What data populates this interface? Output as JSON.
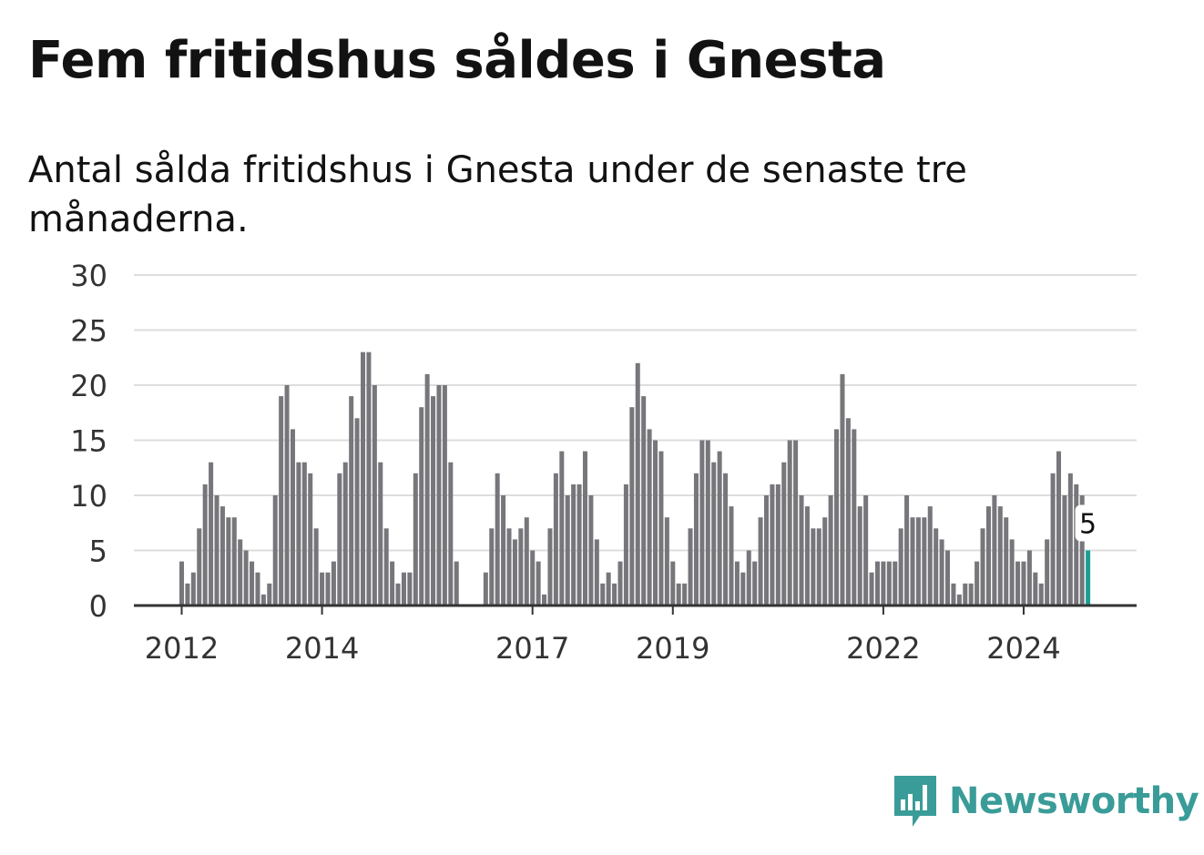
{
  "title": "Fem fritidshus såldes i Gnesta",
  "subtitle": "Antal sålda fritidshus i Gnesta under de senaste tre månaderna.",
  "brand": {
    "name": "Newsworthy",
    "color": "#3a9c98"
  },
  "colors": {
    "bar": "#77767b",
    "highlight": "#1a9e94",
    "grid": "#dddddd",
    "axis": "#333333"
  },
  "chart_data": {
    "type": "bar",
    "ylim": [
      0,
      30
    ],
    "yticks": [
      0,
      5,
      10,
      15,
      20,
      25,
      30
    ],
    "xticks": [
      {
        "label": "2012",
        "x": 2012.0
      },
      {
        "label": "2014",
        "x": 2014.0
      },
      {
        "label": "2017",
        "x": 2017.0
      },
      {
        "label": "2019",
        "x": 2019.0
      },
      {
        "label": "2022",
        "x": 2022.0
      },
      {
        "label": "2024",
        "x": 2024.0
      }
    ],
    "start": 2012.0,
    "step_months": 1,
    "grid": true,
    "values": [
      4,
      2,
      3,
      7,
      11,
      13,
      10,
      9,
      8,
      8,
      6,
      5,
      4,
      3,
      1,
      2,
      10,
      19,
      20,
      16,
      13,
      13,
      12,
      7,
      3,
      3,
      4,
      12,
      13,
      19,
      17,
      23,
      23,
      20,
      13,
      7,
      4,
      2,
      3,
      3,
      12,
      18,
      21,
      19,
      20,
      20,
      13,
      4,
      0,
      0,
      0,
      0,
      3,
      7,
      12,
      10,
      7,
      6,
      7,
      8,
      5,
      4,
      1,
      7,
      12,
      14,
      10,
      11,
      11,
      14,
      10,
      6,
      2,
      3,
      2,
      4,
      11,
      18,
      22,
      19,
      16,
      15,
      14,
      8,
      4,
      2,
      2,
      7,
      12,
      15,
      15,
      13,
      14,
      12,
      9,
      4,
      3,
      5,
      4,
      8,
      10,
      11,
      11,
      13,
      15,
      15,
      10,
      9,
      7,
      7,
      8,
      10,
      16,
      21,
      17,
      16,
      9,
      10,
      3,
      4,
      4,
      4,
      4,
      7,
      10,
      8,
      8,
      8,
      9,
      7,
      6,
      5,
      2,
      1,
      2,
      2,
      4,
      7,
      9,
      10,
      9,
      8,
      6,
      4,
      4,
      5,
      3,
      2,
      6,
      12,
      14,
      10,
      12,
      11,
      10,
      5
    ],
    "highlight_last": true,
    "annotation": {
      "label": "5"
    }
  }
}
